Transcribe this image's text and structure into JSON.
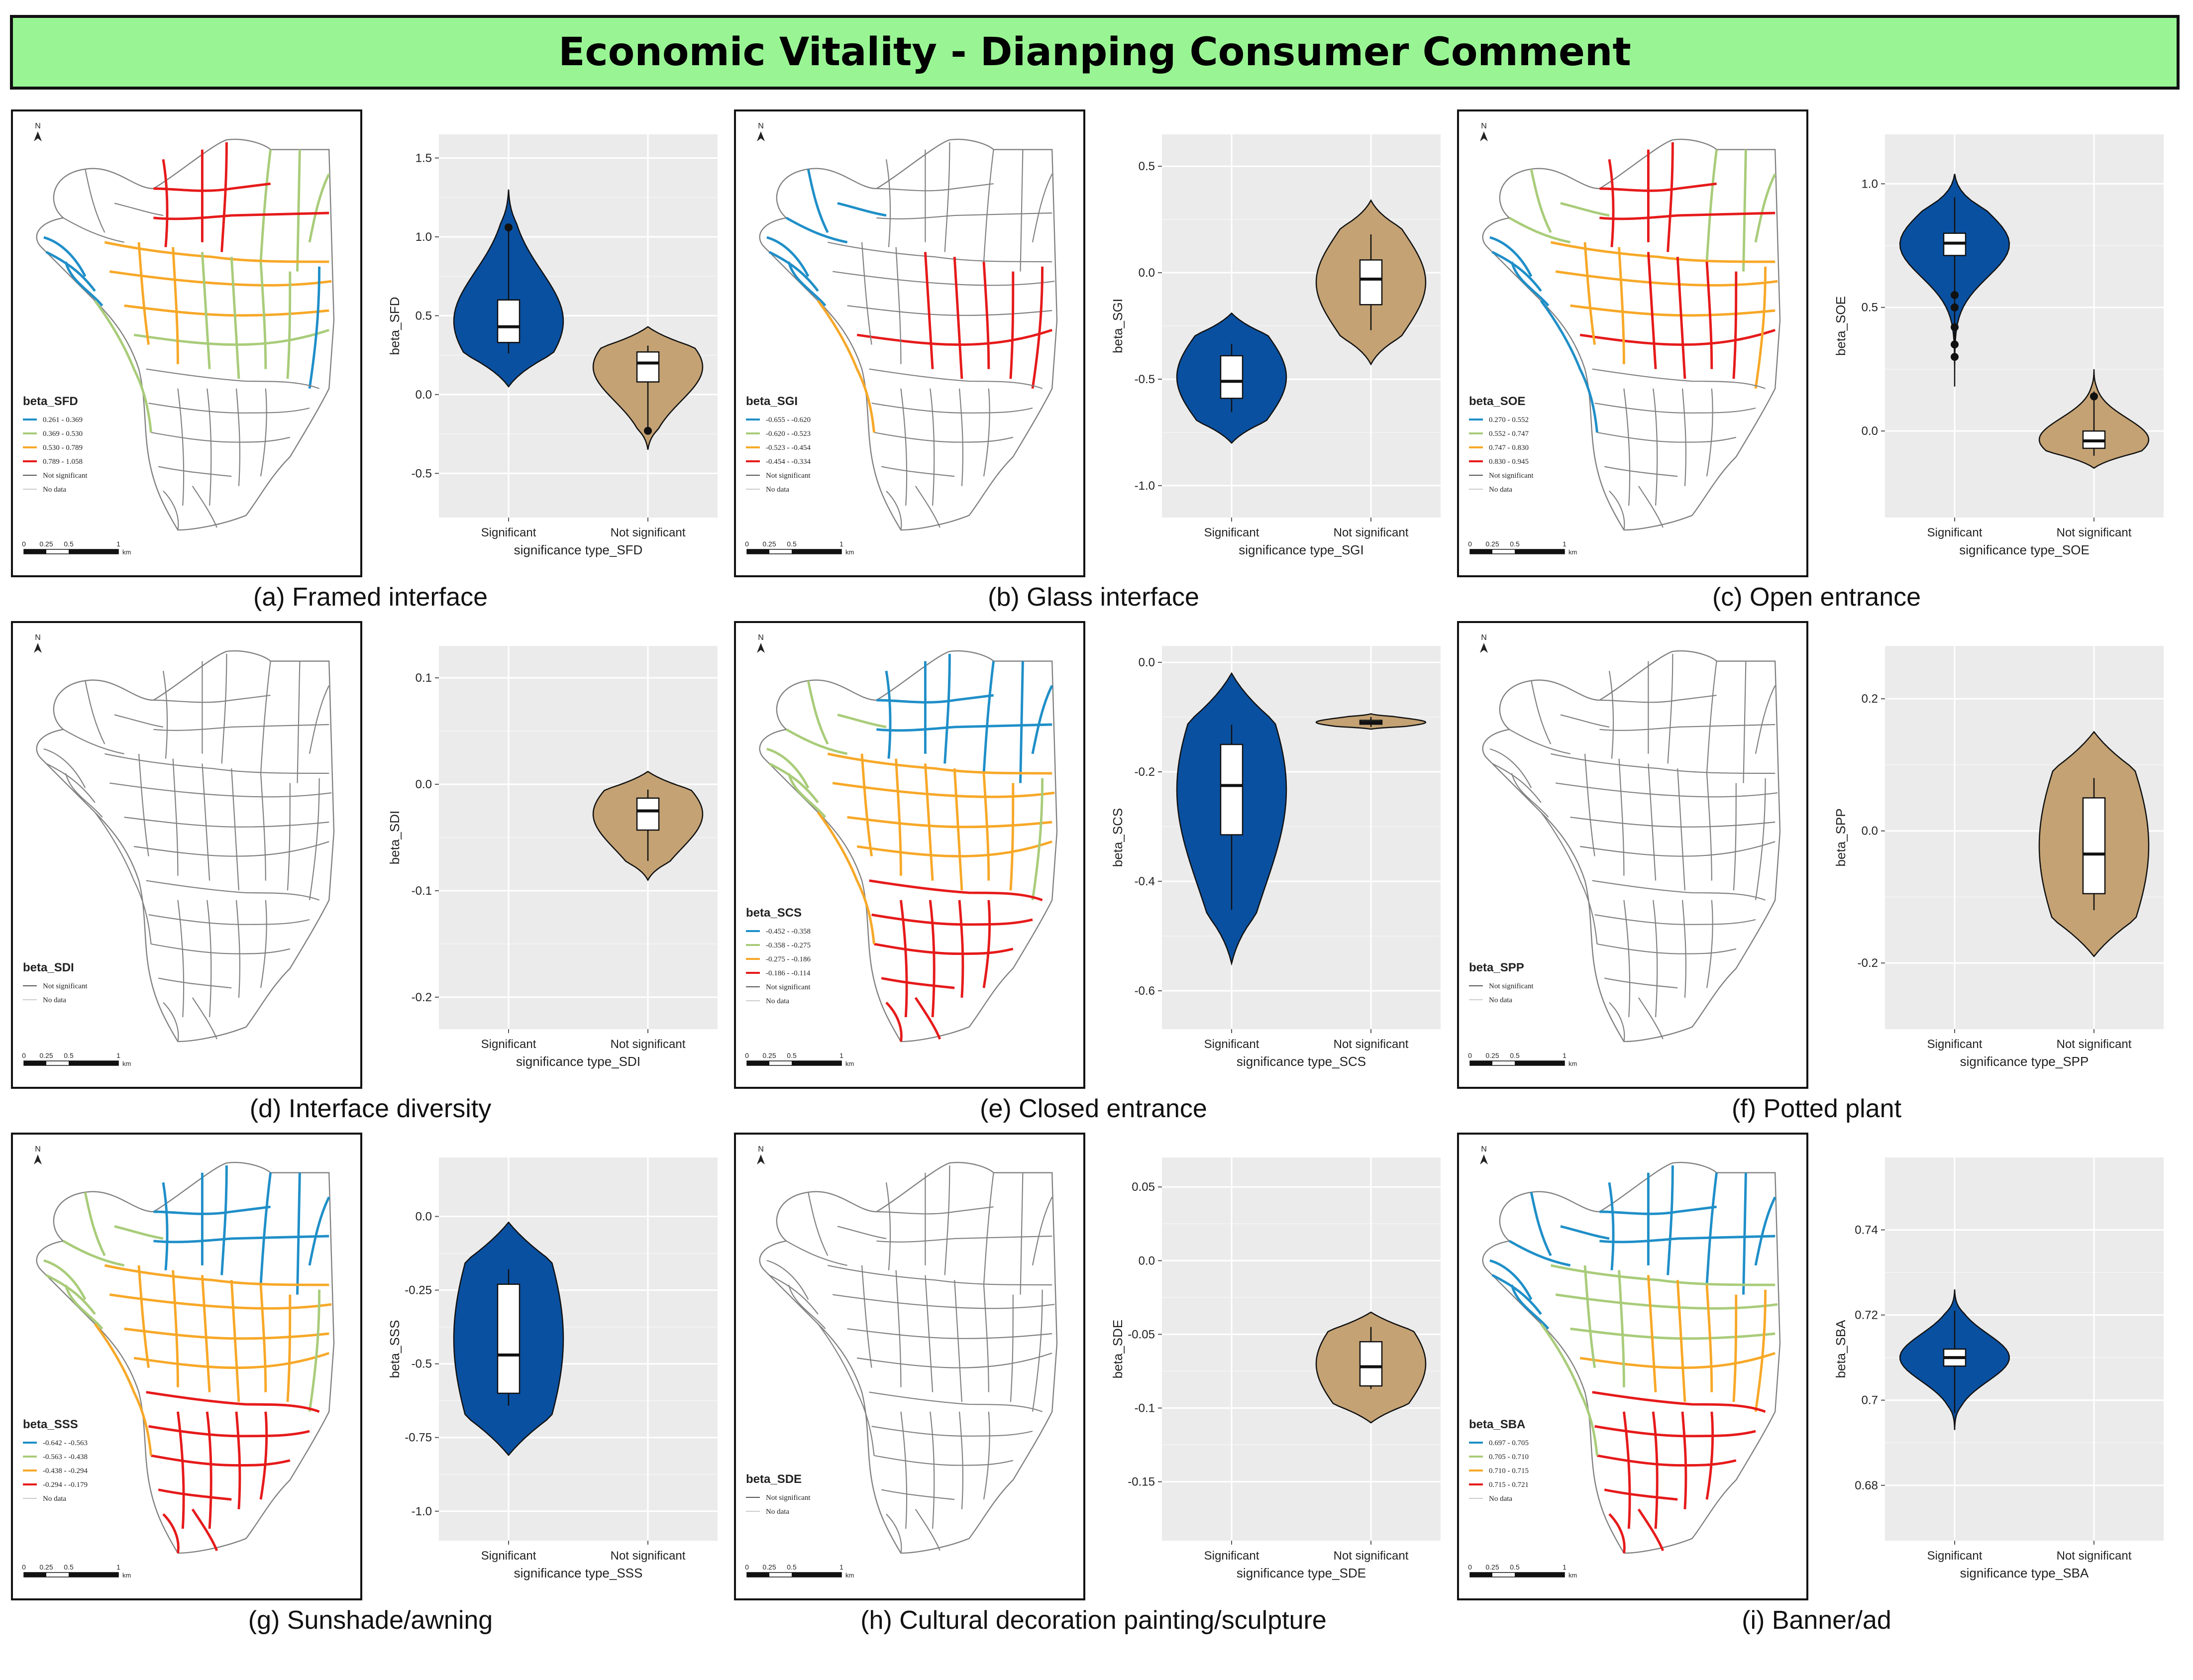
{
  "title": "Economic Vitality - Dianping Consumer Comment",
  "colors": {
    "banner": "#99f594",
    "significant": "#0a50a0",
    "not_significant": "#c4a274",
    "plot_bg": "#ebebeb",
    "class_colors": [
      "#1f8fc8",
      "#a9cc7a",
      "#f7a828",
      "#e61a1a"
    ]
  },
  "common": {
    "map": {
      "north": "N",
      "scale_labels": [
        "0",
        "0.25",
        "0.5",
        "1"
      ],
      "scale_unit": "km",
      "not_significant": "Not significant",
      "no_data": "No data"
    },
    "categories": [
      "Significant",
      "Not significant"
    ]
  },
  "panels": [
    {
      "id": "a",
      "caption": "(a) Framed interface",
      "map_title": "beta_SFD",
      "legend": [
        "0.261 - 0.369",
        "0.369 - 0.530",
        "0.530 - 0.789",
        "0.789 - 1.058"
      ],
      "pattern": "center"
    },
    {
      "id": "b",
      "caption": "(b) Glass interface",
      "map_title": "beta_SGI",
      "legend": [
        "-0.655 - -0.620",
        "-0.620 - -0.523",
        "-0.523 - -0.454",
        "-0.454 - -0.334"
      ],
      "pattern": "west-east"
    },
    {
      "id": "c",
      "caption": "(c) Open entrance",
      "map_title": "beta_SOE",
      "legend": [
        "0.270 - 0.552",
        "0.552 - 0.747",
        "0.747 - 0.830",
        "0.830 - 0.945"
      ],
      "pattern": "broad"
    },
    {
      "id": "d",
      "caption": "(d) Interface diversity",
      "map_title": "beta_SDI",
      "legend": [],
      "pattern": "none"
    },
    {
      "id": "e",
      "caption": "(e) Closed entrance",
      "map_title": "beta_SCS",
      "legend": [
        "-0.452 - -0.358",
        "-0.358 - -0.275",
        "-0.275 - -0.186",
        "-0.186 - -0.114"
      ],
      "pattern": "bands"
    },
    {
      "id": "f",
      "caption": "(f) Potted plant",
      "map_title": "beta_SPP",
      "legend": [],
      "pattern": "none"
    },
    {
      "id": "g",
      "caption": "(g) Sunshade/awning",
      "map_title": "beta_SSS",
      "legend": [
        "-0.642 - -0.563",
        "-0.563 - -0.438",
        "-0.438 - -0.294",
        "-0.294 - -0.179"
      ],
      "pattern": "bands",
      "no_not_sig": true
    },
    {
      "id": "h",
      "caption": "(h) Cultural decoration painting/sculpture",
      "map_title": "beta_SDE",
      "legend": [],
      "pattern": "none"
    },
    {
      "id": "i",
      "caption": "(i) Banner/ad",
      "map_title": "beta_SBA",
      "legend": [
        "0.697 - 0.705",
        "0.705 - 0.710",
        "0.710 - 0.715",
        "0.715 - 0.721"
      ],
      "pattern": "bands2",
      "no_not_sig": true
    }
  ],
  "chart_data": [
    {
      "panel": "a",
      "type": "violin",
      "xlabel": "significance type_SFD",
      "ylabel": "beta_SFD",
      "yticks": [
        1.5,
        1.0,
        0.5,
        0.0,
        -0.5
      ],
      "ylim": [
        -0.78,
        1.65
      ],
      "groups": [
        {
          "name": "Significant",
          "min": 0.261,
          "q1": 0.33,
          "median": 0.43,
          "q3": 0.6,
          "max": 1.058,
          "outliers": [
            1.06
          ],
          "tail": [
            0.05,
            1.3
          ]
        },
        {
          "name": "Not significant",
          "min": -0.25,
          "q1": 0.08,
          "median": 0.2,
          "q3": 0.27,
          "max": 0.31,
          "outliers": [
            -0.23
          ],
          "tail": [
            -0.35,
            0.43
          ]
        }
      ]
    },
    {
      "panel": "b",
      "type": "violin",
      "xlabel": "significance type_SGI",
      "ylabel": "beta_SGI",
      "yticks": [
        0.5,
        0.0,
        -0.5,
        -1.0
      ],
      "ylim": [
        -1.15,
        0.65
      ],
      "groups": [
        {
          "name": "Significant",
          "min": -0.655,
          "q1": -0.59,
          "median": -0.51,
          "q3": -0.39,
          "max": -0.334,
          "outliers": [],
          "tail": [
            -0.8,
            -0.19
          ]
        },
        {
          "name": "Not significant",
          "min": -0.27,
          "q1": -0.15,
          "median": -0.03,
          "q3": 0.06,
          "max": 0.18,
          "outliers": [],
          "tail": [
            -0.43,
            0.34
          ]
        }
      ]
    },
    {
      "panel": "c",
      "type": "violin",
      "xlabel": "significance type_SOE",
      "ylabel": "beta_SOE",
      "yticks": [
        1.0,
        0.5,
        0.0
      ],
      "ylim": [
        -0.35,
        1.2
      ],
      "groups": [
        {
          "name": "Significant",
          "min": 0.27,
          "q1": 0.71,
          "median": 0.76,
          "q3": 0.8,
          "max": 0.945,
          "outliers": [
            0.55,
            0.5,
            0.42,
            0.35,
            0.3
          ],
          "tail": [
            0.18,
            1.04
          ]
        },
        {
          "name": "Not significant",
          "min": -0.1,
          "q1": -0.07,
          "median": -0.04,
          "q3": 0.0,
          "max": 0.16,
          "outliers": [
            0.14
          ],
          "tail": [
            -0.15,
            0.25
          ]
        }
      ]
    },
    {
      "panel": "d",
      "type": "violin",
      "xlabel": "significance type_SDI",
      "ylabel": "beta_SDI",
      "yticks": [
        0.1,
        0.0,
        -0.1,
        -0.2
      ],
      "ylim": [
        -0.23,
        0.13
      ],
      "groups": [
        {
          "name": "Significant",
          "min": null,
          "q1": null,
          "median": null,
          "q3": null,
          "max": null,
          "outliers": [],
          "tail": null
        },
        {
          "name": "Not significant",
          "min": -0.072,
          "q1": -0.043,
          "median": -0.025,
          "q3": -0.013,
          "max": -0.005,
          "outliers": [],
          "tail": [
            -0.09,
            0.012
          ]
        }
      ]
    },
    {
      "panel": "e",
      "type": "violin",
      "xlabel": "significance type_SCS",
      "ylabel": "beta_SCS",
      "yticks": [
        0.0,
        -0.2,
        -0.4,
        -0.6
      ],
      "ylim": [
        -0.67,
        0.03
      ],
      "groups": [
        {
          "name": "Significant",
          "min": -0.452,
          "q1": -0.315,
          "median": -0.225,
          "q3": -0.15,
          "max": -0.114,
          "outliers": [],
          "tail": [
            -0.55,
            -0.02
          ]
        },
        {
          "name": "Not significant",
          "min": -0.118,
          "q1": -0.113,
          "median": -0.11,
          "q3": -0.106,
          "max": -0.1,
          "outliers": [],
          "tail": [
            -0.122,
            -0.094
          ]
        }
      ]
    },
    {
      "panel": "f",
      "type": "violin",
      "xlabel": "significance type_SPP",
      "ylabel": "beta_SPP",
      "yticks": [
        0.2,
        0.0,
        -0.2
      ],
      "ylim": [
        -0.3,
        0.28
      ],
      "groups": [
        {
          "name": "Significant",
          "min": null,
          "q1": null,
          "median": null,
          "q3": null,
          "max": null,
          "outliers": [],
          "tail": null
        },
        {
          "name": "Not significant",
          "min": -0.12,
          "q1": -0.095,
          "median": -0.035,
          "q3": 0.05,
          "max": 0.08,
          "outliers": [],
          "tail": [
            -0.19,
            0.15
          ]
        }
      ]
    },
    {
      "panel": "g",
      "type": "violin",
      "xlabel": "significance type_SSS",
      "ylabel": "beta_SSS",
      "yticks": [
        0.0,
        -0.25,
        -0.5,
        -0.75,
        -1.0
      ],
      "ylim": [
        -1.1,
        0.2
      ],
      "groups": [
        {
          "name": "Significant",
          "min": -0.642,
          "q1": -0.6,
          "median": -0.47,
          "q3": -0.23,
          "max": -0.179,
          "outliers": [],
          "tail": [
            -0.81,
            -0.02
          ]
        },
        {
          "name": "Not significant",
          "min": null,
          "q1": null,
          "median": null,
          "q3": null,
          "max": null,
          "outliers": [],
          "tail": null
        }
      ]
    },
    {
      "panel": "h",
      "type": "violin",
      "xlabel": "significance type_SDE",
      "ylabel": "beta_SDE",
      "yticks": [
        0.05,
        0.0,
        -0.05,
        -0.1,
        -0.15
      ],
      "ylim": [
        -0.19,
        0.07
      ],
      "groups": [
        {
          "name": "Significant",
          "min": null,
          "q1": null,
          "median": null,
          "q3": null,
          "max": null,
          "outliers": [],
          "tail": null
        },
        {
          "name": "Not significant",
          "min": -0.087,
          "q1": -0.085,
          "median": -0.072,
          "q3": -0.055,
          "max": -0.045,
          "outliers": [],
          "tail": [
            -0.11,
            -0.035
          ]
        }
      ]
    },
    {
      "panel": "i",
      "type": "violin",
      "xlabel": "significance type_SBA",
      "ylabel": "beta_SBA",
      "yticks": [
        0.74,
        0.72,
        0.7,
        0.68
      ],
      "ylim": [
        0.667,
        0.757
      ],
      "groups": [
        {
          "name": "Significant",
          "min": 0.697,
          "q1": 0.708,
          "median": 0.71,
          "q3": 0.712,
          "max": 0.721,
          "outliers": [],
          "tail": [
            0.693,
            0.726
          ]
        },
        {
          "name": "Not significant",
          "min": null,
          "q1": null,
          "median": null,
          "q3": null,
          "max": null,
          "outliers": [],
          "tail": null
        }
      ]
    }
  ]
}
